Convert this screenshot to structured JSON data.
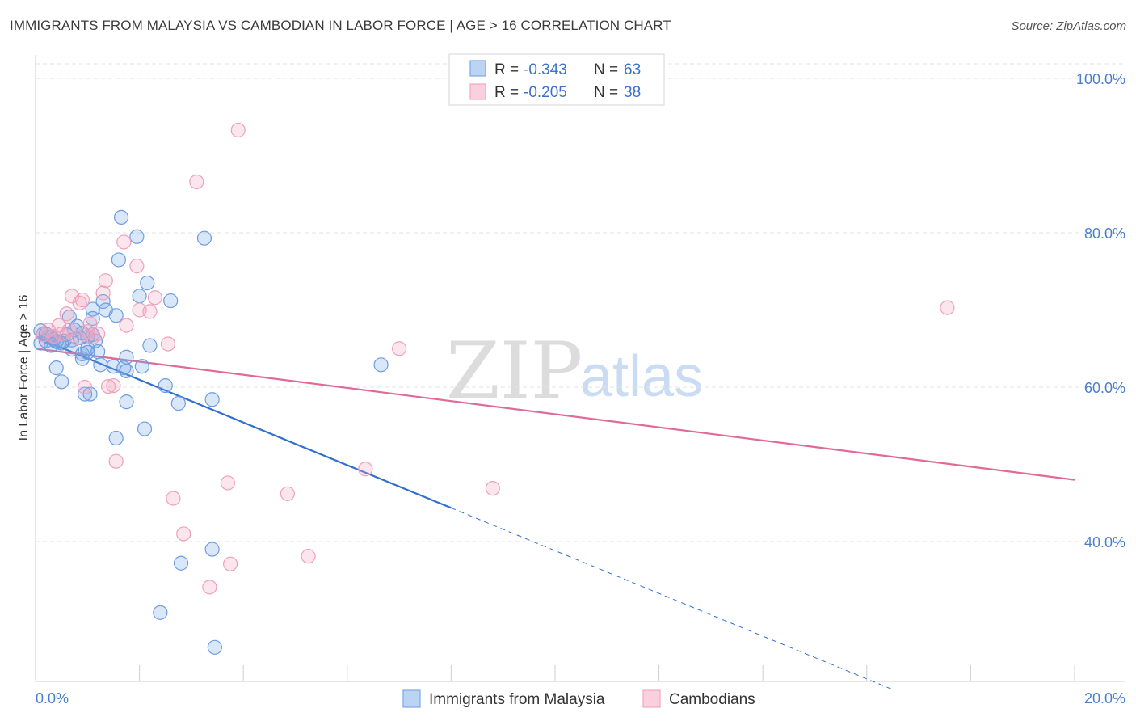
{
  "title": "IMMIGRANTS FROM MALAYSIA VS CAMBODIAN IN LABOR FORCE | AGE > 16 CORRELATION CHART",
  "source": "Source: ZipAtlas.com",
  "legend": {
    "row1": {
      "r_label": "R =",
      "r_value": "-0.343",
      "n_label": "N =",
      "n_value": "63"
    },
    "row2": {
      "r_label": "R =",
      "r_value": "-0.205",
      "n_label": "N =",
      "n_value": "38"
    }
  },
  "watermark": {
    "zip": "ZIP",
    "atlas": "atlas"
  },
  "chart_data": {
    "type": "scatter",
    "title": "IMMIGRANTS FROM MALAYSIA VS CAMBODIAN IN LABOR FORCE | AGE > 16 CORRELATION CHART",
    "xlabel": "",
    "ylabel": "In Labor Force | Age > 16",
    "xlim": [
      0,
      20
    ],
    "ylim": [
      20,
      103
    ],
    "x_tick_labels": {
      "min": "0.0%",
      "max": "20.0%"
    },
    "y_ticks": [
      {
        "value": 100,
        "label": "100.0%"
      },
      {
        "value": 80,
        "label": "80.0%"
      },
      {
        "value": 60,
        "label": "60.0%"
      },
      {
        "value": 40,
        "label": "40.0%"
      }
    ],
    "colors": {
      "malaysia": "#7aa8e6",
      "malaysia_line": "#2f6fd0",
      "cambodian": "#f2a6c0",
      "cambodian_line": "#e06a96"
    },
    "series": [
      {
        "name": "Immigrants from Malaysia",
        "color": "#7aa8e6",
        "points": [
          [
            0.1,
            67.3
          ],
          [
            0.1,
            65.7
          ],
          [
            0.15,
            66.9
          ],
          [
            0.2,
            66.0
          ],
          [
            0.25,
            66.5
          ],
          [
            0.3,
            65.4
          ],
          [
            0.35,
            66.2
          ],
          [
            0.4,
            62.5
          ],
          [
            0.45,
            65.8
          ],
          [
            0.5,
            60.7
          ],
          [
            0.55,
            66.0
          ],
          [
            0.6,
            66.8
          ],
          [
            0.65,
            69.1
          ],
          [
            0.7,
            64.9
          ],
          [
            0.75,
            67.4
          ],
          [
            0.8,
            67.9
          ],
          [
            0.85,
            66.4
          ],
          [
            0.9,
            64.3
          ],
          [
            0.9,
            63.7
          ],
          [
            0.95,
            59.1
          ],
          [
            1.0,
            65.0
          ],
          [
            1.0,
            64.5
          ],
          [
            1.05,
            59.1
          ],
          [
            1.1,
            70.1
          ],
          [
            1.1,
            68.9
          ],
          [
            1.15,
            66.0
          ],
          [
            1.2,
            64.6
          ],
          [
            1.25,
            62.9
          ],
          [
            1.3,
            71.1
          ],
          [
            1.35,
            70.0
          ],
          [
            1.5,
            62.7
          ],
          [
            1.55,
            53.4
          ],
          [
            1.55,
            69.3
          ],
          [
            1.6,
            76.5
          ],
          [
            1.65,
            82.0
          ],
          [
            1.7,
            62.5
          ],
          [
            1.75,
            58.1
          ],
          [
            1.75,
            62.1
          ],
          [
            1.75,
            63.9
          ],
          [
            1.95,
            79.5
          ],
          [
            2.0,
            71.8
          ],
          [
            2.05,
            62.7
          ],
          [
            2.1,
            54.6
          ],
          [
            2.15,
            73.5
          ],
          [
            2.2,
            65.4
          ],
          [
            2.4,
            30.8
          ],
          [
            2.5,
            60.2
          ],
          [
            2.6,
            71.2
          ],
          [
            2.75,
            57.9
          ],
          [
            2.8,
            37.2
          ],
          [
            3.25,
            79.3
          ],
          [
            3.4,
            58.4
          ],
          [
            3.4,
            39.0
          ],
          [
            3.45,
            26.3
          ],
          [
            6.65,
            62.9
          ],
          [
            0.3,
            66.4
          ],
          [
            0.5,
            65.7
          ],
          [
            0.7,
            66.1
          ],
          [
            0.9,
            67.0
          ],
          [
            1.0,
            66.5
          ],
          [
            1.1,
            66.8
          ],
          [
            0.2,
            66.9
          ],
          [
            0.4,
            65.9
          ]
        ]
      },
      {
        "name": "Cambodians",
        "color": "#f2a6c0",
        "points": [
          [
            0.15,
            66.8
          ],
          [
            0.25,
            67.4
          ],
          [
            0.35,
            66.6
          ],
          [
            0.45,
            68.0
          ],
          [
            0.5,
            66.9
          ],
          [
            0.6,
            69.5
          ],
          [
            0.65,
            67.4
          ],
          [
            0.7,
            71.8
          ],
          [
            0.8,
            66.4
          ],
          [
            0.85,
            70.9
          ],
          [
            0.9,
            71.3
          ],
          [
            0.95,
            60.0
          ],
          [
            1.0,
            67.2
          ],
          [
            1.05,
            68.2
          ],
          [
            1.1,
            66.5
          ],
          [
            1.2,
            66.9
          ],
          [
            1.3,
            72.2
          ],
          [
            1.35,
            73.8
          ],
          [
            1.4,
            60.1
          ],
          [
            1.5,
            60.2
          ],
          [
            1.55,
            50.4
          ],
          [
            1.7,
            78.8
          ],
          [
            1.75,
            68.0
          ],
          [
            1.95,
            75.7
          ],
          [
            2.0,
            70.0
          ],
          [
            2.2,
            69.8
          ],
          [
            2.3,
            71.6
          ],
          [
            2.55,
            65.6
          ],
          [
            2.65,
            45.6
          ],
          [
            2.85,
            41.0
          ],
          [
            3.1,
            86.6
          ],
          [
            3.35,
            34.1
          ],
          [
            3.7,
            47.6
          ],
          [
            3.75,
            37.1
          ],
          [
            3.9,
            93.3
          ],
          [
            4.85,
            46.2
          ],
          [
            5.25,
            38.1
          ],
          [
            6.35,
            49.4
          ],
          [
            7.0,
            65.0
          ],
          [
            8.8,
            46.9
          ],
          [
            17.55,
            70.3
          ]
        ]
      }
    ],
    "trendlines": [
      {
        "series": "Immigrants from Malaysia",
        "x_start": 0,
        "y_start": 66.5,
        "x_solid_end": 8.0,
        "x_end": 16.5,
        "slope": -2.768
      },
      {
        "series": "Cambodians",
        "x_start": 0,
        "y_start": 65.0,
        "x_end": 20,
        "y_end": 48.0
      }
    ],
    "legend_entries": [
      "Immigrants from Malaysia",
      "Cambodians"
    ]
  }
}
